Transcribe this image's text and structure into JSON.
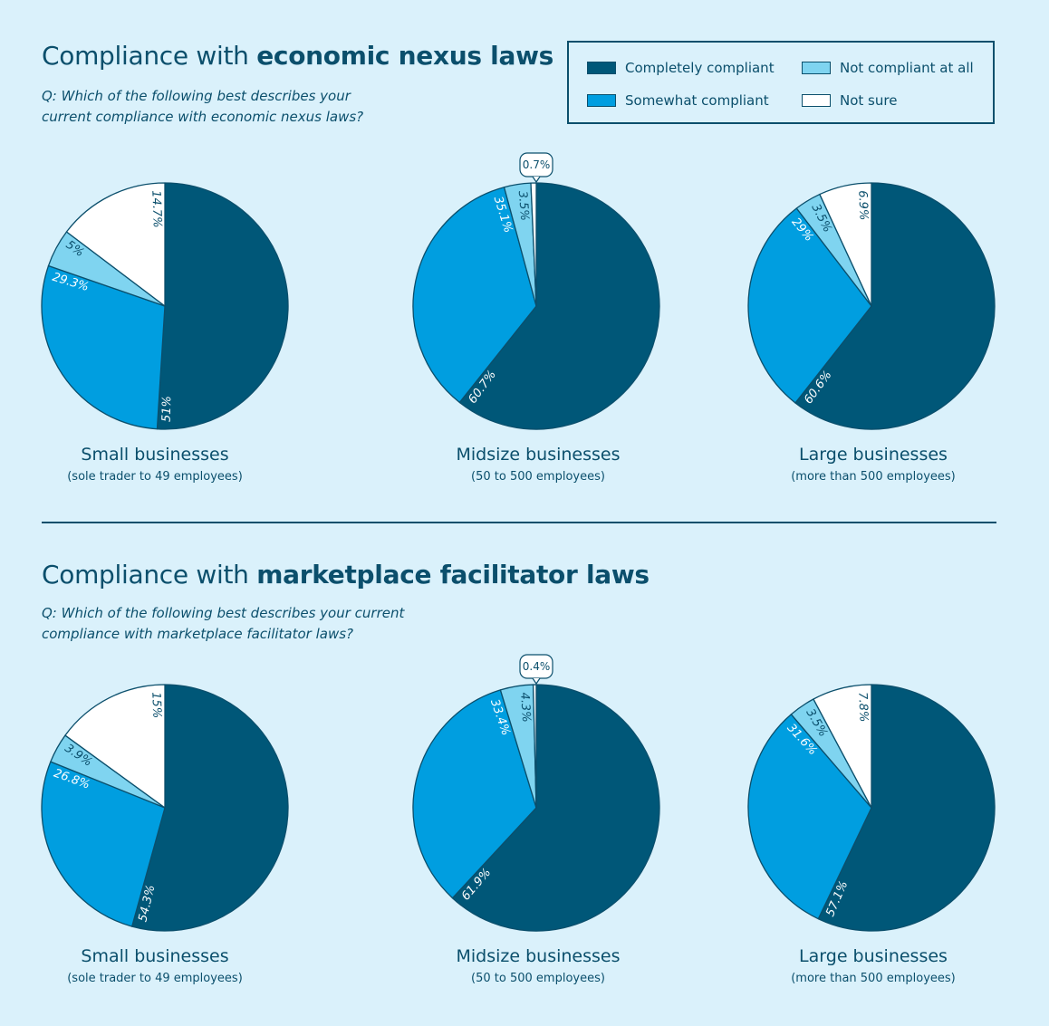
{
  "sections": [
    {
      "title_prefix": "Compliance with ",
      "title_bold": "economic nexus laws",
      "question_line1": "Q: Which of the following best describes your",
      "question_line2": "current compliance with economic nexus laws?"
    },
    {
      "title_prefix": "Compliance with ",
      "title_bold": "marketplace facilitator laws",
      "question_line1": "Q: Which of the following best describes your current",
      "question_line2": "compliance with marketplace facilitator laws?"
    }
  ],
  "legend": [
    {
      "label": "Completely compliant",
      "color": "#005778"
    },
    {
      "label": "Somewhat compliant",
      "color": "#009ee0"
    },
    {
      "label": "Not compliant at all",
      "color": "#7fd4f0"
    },
    {
      "label": "Not sure",
      "color": "#ffffff"
    }
  ],
  "colors": {
    "completely": "#005778",
    "somewhat": "#009ee0",
    "not_compliant": "#7fd4f0",
    "not_sure": "#ffffff",
    "stroke": "#0b4f6c"
  },
  "chart_data": [
    {
      "type": "pie",
      "section": "economic nexus laws",
      "title": "Small businesses",
      "subtitle": "(sole trader to 49 employees)",
      "slices": [
        {
          "name": "Completely compliant",
          "value": 51,
          "label": "51%"
        },
        {
          "name": "Somewhat compliant",
          "value": 29.3,
          "label": "29.3%"
        },
        {
          "name": "Not compliant at all",
          "value": 5,
          "label": "5%"
        },
        {
          "name": "Not sure",
          "value": 14.7,
          "label": "14.7%"
        }
      ]
    },
    {
      "type": "pie",
      "section": "economic nexus laws",
      "title": "Midsize businesses",
      "subtitle": "(50 to 500 employees)",
      "slices": [
        {
          "name": "Completely compliant",
          "value": 60.7,
          "label": "60.7%"
        },
        {
          "name": "Somewhat compliant",
          "value": 35.1,
          "label": "35.1%"
        },
        {
          "name": "Not compliant at all",
          "value": 3.5,
          "label": "3.5%"
        },
        {
          "name": "Not sure",
          "value": 0.7,
          "label": "0.7%",
          "callout": true
        }
      ]
    },
    {
      "type": "pie",
      "section": "economic nexus laws",
      "title": "Large businesses",
      "subtitle": "(more than 500 employees)",
      "slices": [
        {
          "name": "Completely compliant",
          "value": 60.6,
          "label": "60.6%"
        },
        {
          "name": "Somewhat compliant",
          "value": 29,
          "label": "29%"
        },
        {
          "name": "Not compliant at all",
          "value": 3.5,
          "label": "3.5%"
        },
        {
          "name": "Not sure",
          "value": 6.9,
          "label": "6.9%"
        }
      ]
    },
    {
      "type": "pie",
      "section": "marketplace facilitator laws",
      "title": "Small businesses",
      "subtitle": "(sole trader to 49 employees)",
      "slices": [
        {
          "name": "Completely compliant",
          "value": 54.3,
          "label": "54.3%"
        },
        {
          "name": "Somewhat compliant",
          "value": 26.8,
          "label": "26.8%"
        },
        {
          "name": "Not compliant at all",
          "value": 3.9,
          "label": "3.9%"
        },
        {
          "name": "Not sure",
          "value": 15,
          "label": "15%"
        }
      ]
    },
    {
      "type": "pie",
      "section": "marketplace facilitator laws",
      "title": "Midsize businesses",
      "subtitle": "(50 to 500 employees)",
      "slices": [
        {
          "name": "Completely compliant",
          "value": 61.9,
          "label": "61.9%"
        },
        {
          "name": "Somewhat compliant",
          "value": 33.4,
          "label": "33.4%"
        },
        {
          "name": "Not compliant at all",
          "value": 4.3,
          "label": "4.3%"
        },
        {
          "name": "Not sure",
          "value": 0.4,
          "label": "0.4%",
          "callout": true
        }
      ]
    },
    {
      "type": "pie",
      "section": "marketplace facilitator laws",
      "title": "Large businesses",
      "subtitle": "(more than 500 employees)",
      "slices": [
        {
          "name": "Completely compliant",
          "value": 57.1,
          "label": "57.1%"
        },
        {
          "name": "Somewhat compliant",
          "value": 31.6,
          "label": "31.6%"
        },
        {
          "name": "Not compliant at all",
          "value": 3.5,
          "label": "3.5%"
        },
        {
          "name": "Not sure",
          "value": 7.8,
          "label": "7.8%"
        }
      ]
    }
  ]
}
